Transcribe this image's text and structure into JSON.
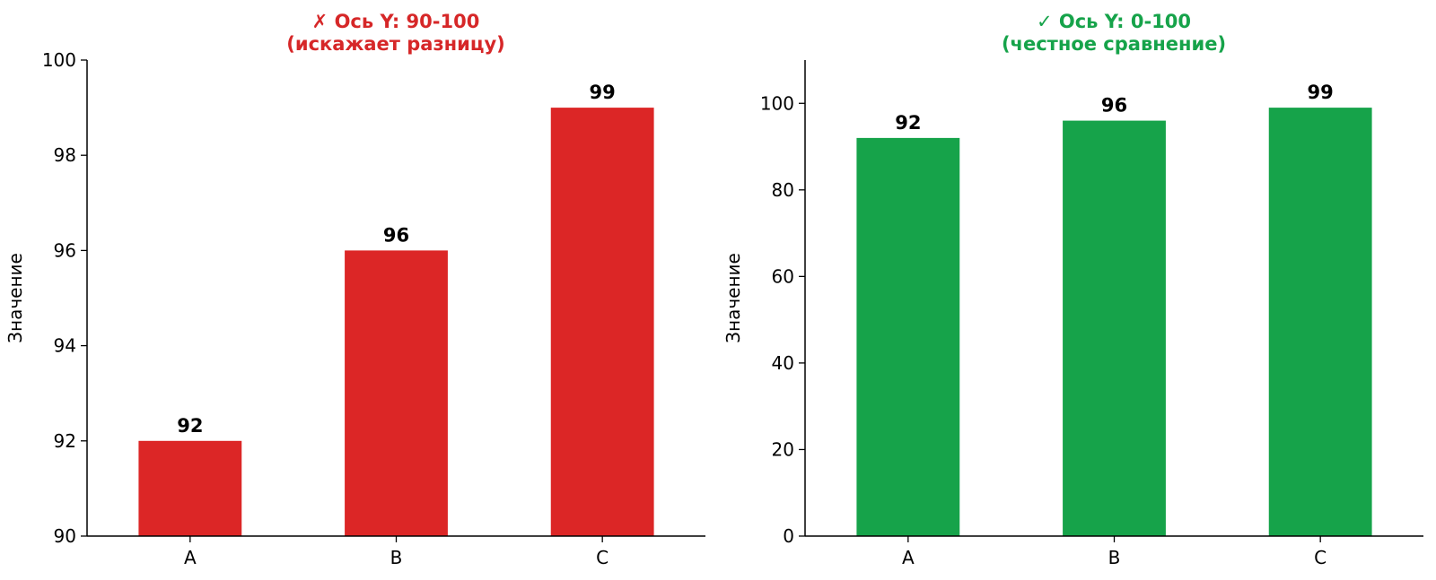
{
  "chart_data": [
    {
      "type": "bar",
      "title": "✗ Ось Y: 90-100",
      "subtitle": "(искажает разницу)",
      "title_color": "#d62728",
      "bar_color": "#dc2626",
      "categories": [
        "A",
        "B",
        "C"
      ],
      "values": [
        92,
        96,
        99
      ],
      "data_labels": [
        "92",
        "96",
        "99"
      ],
      "xlabel": "",
      "ylabel": "Значение",
      "ylim": [
        90,
        100
      ],
      "yticks": [
        90,
        92,
        94,
        96,
        98,
        100
      ],
      "grid": false
    },
    {
      "type": "bar",
      "title": "✓ Ось Y: 0-100",
      "subtitle": "(честное сравнение)",
      "title_color": "#16a34a",
      "bar_color": "#16a34a",
      "categories": [
        "A",
        "B",
        "C"
      ],
      "values": [
        92,
        96,
        99
      ],
      "data_labels": [
        "92",
        "96",
        "99"
      ],
      "xlabel": "",
      "ylabel": "Значение",
      "ylim": [
        0,
        110
      ],
      "yticks": [
        0,
        20,
        40,
        60,
        80,
        100
      ],
      "grid": false
    }
  ]
}
